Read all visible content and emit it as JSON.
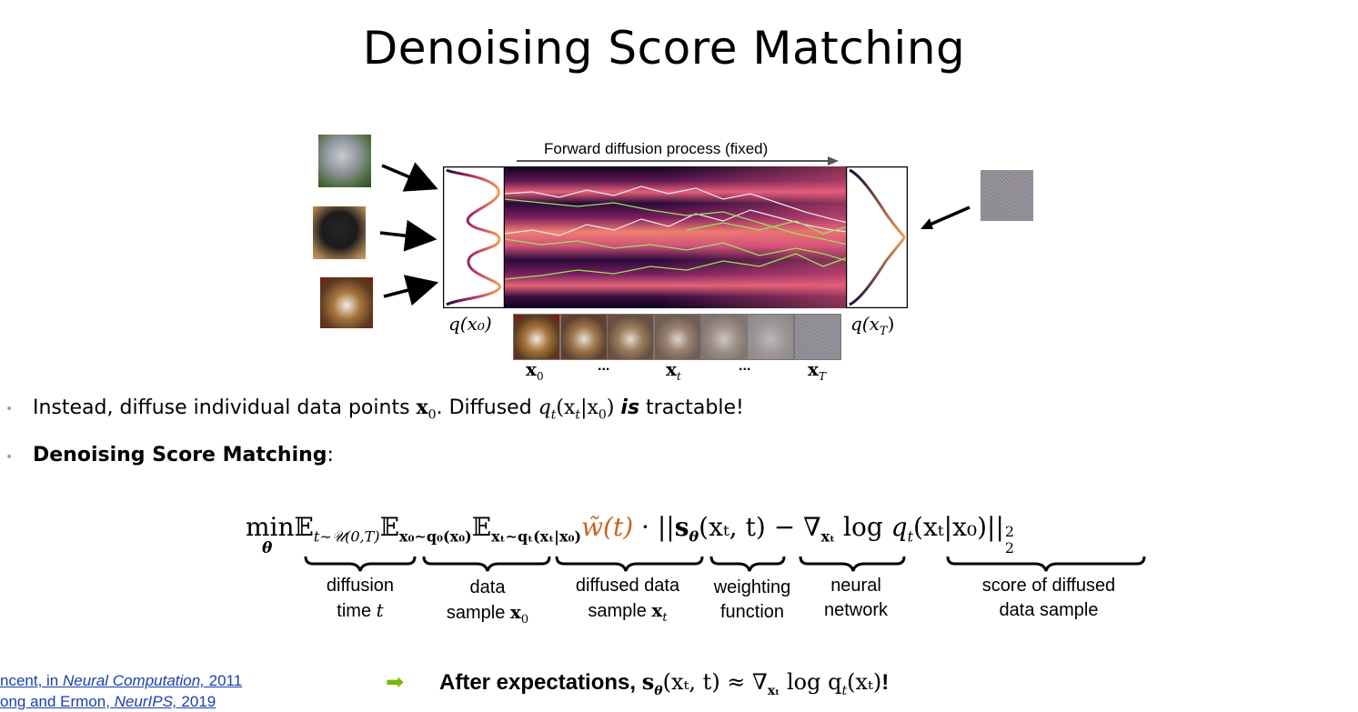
{
  "slide": {
    "title": "Denoising Score Matching"
  },
  "figure": {
    "arrow_label": "Forward diffusion process (fixed)",
    "q_x0": "q(x₀)",
    "q_xT": "q(x",
    "q_xT_sub": "T",
    "strip_labels": {
      "x0": "x",
      "x0_sub": "0",
      "dots1": "...",
      "xt": "x",
      "xt_sub": "t",
      "dots2": "...",
      "xT": "x",
      "xT_sub": "T"
    }
  },
  "bullets": {
    "b1_pre": "Instead, diffuse individual data points ",
    "b1_math1": "x",
    "b1_math1_sub": "0",
    "b1_mid": ". Diffused ",
    "b1_math2": "q",
    "b1_math2_sub": "t",
    "b1_math2_rest": "(x",
    "b1_math2_rest_sub": "t",
    "b1_math2_rest2": "|x",
    "b1_math2_rest2_sub": "0",
    "b1_math2_close": ")",
    "b1_is": "is",
    "b1_post": " tractable!",
    "b2_bold": "Denoising Score Matching",
    "b2_post": ":"
  },
  "equation": {
    "min": "min",
    "theta": "θ",
    "E1": "𝔼",
    "E1_sub": "t∼𝒰(0,T)",
    "E2": "𝔼",
    "E2_sub": "x₀∼q₀(x₀)",
    "E3": "𝔼",
    "E3_sub": "xₜ∼qₜ(xₜ|x₀)",
    "weight": "w̃(t)",
    "dot": "·",
    "norm_open": "||",
    "s": "s",
    "s_sub": "θ",
    "s_args": "(xₜ, t)",
    "minus": "−",
    "nabla": "∇",
    "nabla_sub": "xₜ",
    "log": "log",
    "q": "q",
    "q_sub": "t",
    "q_args": "(xₜ|x₀)",
    "norm_close": "||",
    "sup": "2",
    "subsc": "2"
  },
  "brace_labels": {
    "diffusion_l1": "diffusion",
    "diffusion_l2": "time ",
    "diffusion_var": "t",
    "data_l1": "data",
    "data_l2": "sample ",
    "data_var": "x",
    "data_var_sub": "0",
    "diffused_l1": "diffused data",
    "diffused_l2": "sample ",
    "diffused_var": "x",
    "diffused_var_sub": "t",
    "weighting_l1": "weighting",
    "weighting_l2": "function",
    "neural_l1": "neural",
    "neural_l2": "network",
    "score_l1": "score of diffused",
    "score_l2": "data sample"
  },
  "references": {
    "ref1_pre": "ncent, in ",
    "ref1_ital": "Neural Computation,",
    "ref1_post": " 2011",
    "ref2_pre": "ong and Ermon, ",
    "ref2_ital": "NeurIPS,",
    "ref2_post": " 2019"
  },
  "conclusion": {
    "arrow": "➡",
    "bold": "After expectations, ",
    "math": "s",
    "math_sub": "θ",
    "math_rest": "(xₜ, t) ≈ ∇",
    "math_rest_sub": "xₜ",
    "math_rest2": " log q",
    "math_rest2_sub": "t",
    "math_rest3": "(xₜ)",
    "bang": "!"
  },
  "colors": {
    "accent_orange": "#c8641e",
    "arrow_green": "#76b900",
    "link_blue": "#1a3fb0",
    "bullet_grey": "#9e9e9e"
  }
}
